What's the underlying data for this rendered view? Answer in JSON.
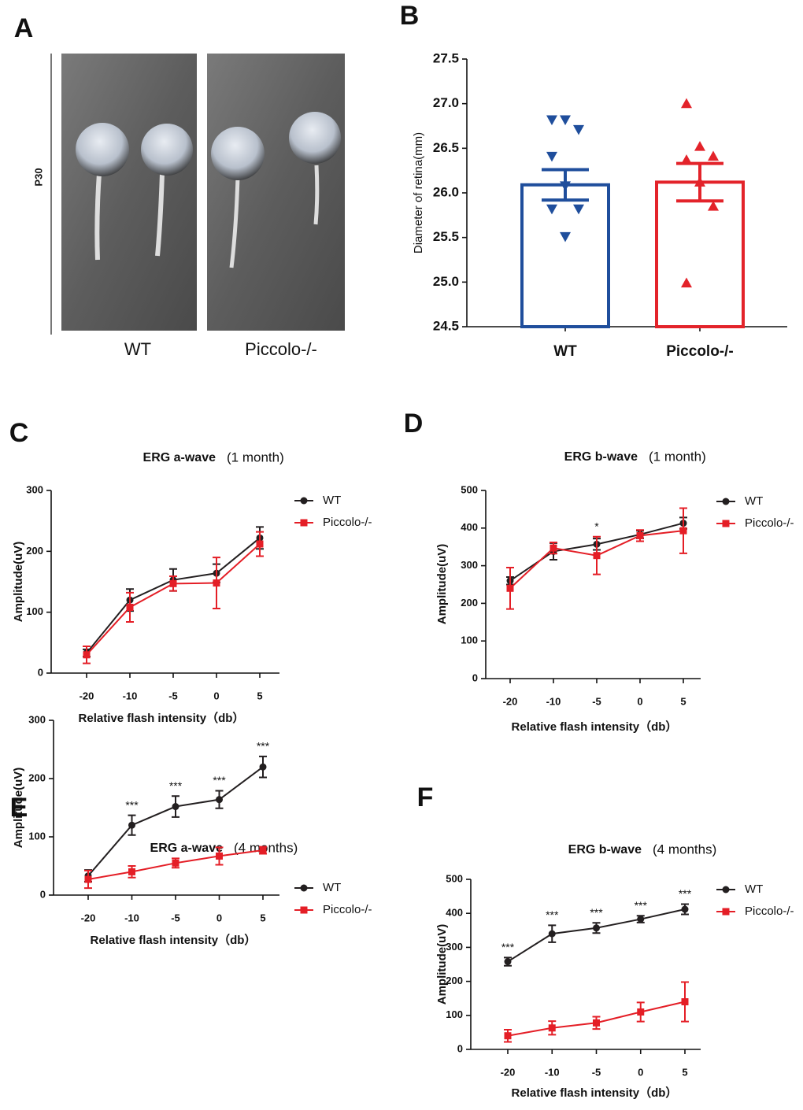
{
  "panel_a": {
    "letter": "A",
    "side_label": "P30",
    "labels": [
      "WT",
      "Piccolo-/-"
    ]
  },
  "chart_data": [
    {
      "type": "bar",
      "panel": "B",
      "y_label": "Diameter of retina(mm)",
      "categories": [
        "WT",
        "Piccolo-/-"
      ],
      "colors": [
        "#1f4e9c",
        "#e3232a"
      ],
      "values": [
        26.09,
        26.12
      ],
      "errors": [
        0.17,
        0.21
      ],
      "points": [
        [
          26.82,
          26.82,
          26.71,
          26.41,
          26.08,
          25.82,
          25.82,
          25.51
        ],
        [
          27.0,
          26.52,
          26.41,
          26.37,
          26.12,
          25.85,
          24.99
        ]
      ],
      "markers": [
        "triangle-down",
        "triangle-up"
      ],
      "ylim": [
        24.5,
        27.5
      ],
      "yticks": [
        24.5,
        {
          "value": 25,
          "label": "25.0"
        },
        25.5,
        {
          "value": 26,
          "label": "26.0"
        },
        26.5,
        {
          "value": 27,
          "label": "27.0"
        },
        27.5
      ]
    },
    {
      "type": "line",
      "panel": "C",
      "title": "ERG a-wave",
      "subtitle": "(1 month)",
      "x_label": "Relative flash intensity（db）",
      "y_label": "Amplitude(uV)",
      "categories": [
        -20,
        -10,
        -5,
        0,
        5
      ],
      "ylim": [
        0,
        300
      ],
      "yticks": [
        0,
        100,
        200,
        300
      ],
      "series": [
        {
          "name": "WT",
          "color": "#231f20",
          "marker": "circle",
          "values": [
            33,
            120,
            153,
            164,
            222
          ],
          "errors": [
            6,
            18,
            18,
            15,
            18
          ]
        },
        {
          "name": "Piccolo-/-",
          "color": "#e41e26",
          "marker": "square",
          "values": [
            30,
            108,
            147,
            148,
            212
          ],
          "errors": [
            14,
            24,
            12,
            42,
            20
          ]
        }
      ]
    },
    {
      "type": "line",
      "panel": "D",
      "title": "ERG b-wave",
      "subtitle": "(1 month)",
      "x_label": "Relative flash intensity（db）",
      "y_label": "Amplitude(uV)",
      "categories": [
        -20,
        -10,
        -5,
        0,
        5
      ],
      "ylim": [
        0,
        500
      ],
      "yticks": [
        0,
        100,
        200,
        300,
        400,
        500
      ],
      "series": [
        {
          "name": "WT",
          "color": "#231f20",
          "marker": "circle",
          "values": [
            260,
            338,
            357,
            383,
            413
          ],
          "errors": [
            10,
            22,
            15,
            10,
            15
          ]
        },
        {
          "name": "Piccolo-/-",
          "color": "#e41e26",
          "marker": "square",
          "values": [
            240,
            347,
            327,
            380,
            393
          ],
          "errors": [
            55,
            15,
            50,
            15,
            60
          ]
        }
      ],
      "annotations": [
        {
          "x": -5,
          "text": "*"
        }
      ]
    },
    {
      "type": "line",
      "panel": "E",
      "title": "ERG a-wave",
      "subtitle": "(4 months)",
      "x_label": "Relative flash intensity（db）",
      "y_label": "Amplitude(uV)",
      "categories": [
        -20,
        -10,
        -5,
        0,
        5
      ],
      "ylim": [
        0,
        300
      ],
      "yticks": [
        0,
        100,
        200,
        300
      ],
      "series": [
        {
          "name": "WT",
          "color": "#231f20",
          "marker": "circle",
          "values": [
            33,
            120,
            152,
            164,
            220
          ],
          "errors": [
            10,
            17,
            18,
            15,
            18
          ]
        },
        {
          "name": "Piccolo-/-",
          "color": "#e41e26",
          "marker": "square",
          "values": [
            27,
            40,
            55,
            67,
            77
          ],
          "errors": [
            15,
            10,
            8,
            15,
            6
          ]
        }
      ],
      "annotations": [
        {
          "x": -10,
          "text": "***"
        },
        {
          "x": -5,
          "text": "***"
        },
        {
          "x": 0,
          "text": "***"
        },
        {
          "x": 5,
          "text": "***"
        }
      ]
    },
    {
      "type": "line",
      "panel": "F",
      "title": "ERG b-wave",
      "subtitle": "(4 months)",
      "x_label": "Relative flash intensity（db）",
      "y_label": "Amplitude(uV)",
      "categories": [
        -20,
        -10,
        -5,
        0,
        5
      ],
      "ylim": [
        0,
        500
      ],
      "yticks": [
        0,
        100,
        200,
        300,
        400,
        500
      ],
      "series": [
        {
          "name": "WT",
          "color": "#231f20",
          "marker": "circle",
          "values": [
            258,
            340,
            357,
            383,
            412
          ],
          "errors": [
            12,
            25,
            15,
            10,
            15
          ]
        },
        {
          "name": "Piccolo-/-",
          "color": "#e41e26",
          "marker": "square",
          "values": [
            40,
            63,
            78,
            110,
            140
          ],
          "errors": [
            18,
            20,
            18,
            28,
            58
          ]
        }
      ],
      "annotations": [
        {
          "x": -20,
          "text": "***"
        },
        {
          "x": -10,
          "text": "***"
        },
        {
          "x": -5,
          "text": "***"
        },
        {
          "x": 0,
          "text": "***"
        },
        {
          "x": 5,
          "text": "***"
        }
      ]
    }
  ]
}
